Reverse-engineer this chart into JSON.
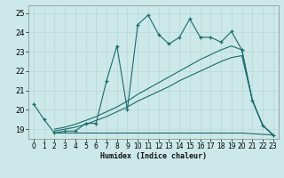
{
  "bg_color": "#cce8e8",
  "grid_color": "#b8d8d8",
  "line_color": "#1a6b6b",
  "xlabel": "Humidex (Indice chaleur)",
  "ylim": [
    18.5,
    25.4
  ],
  "xlim": [
    -0.5,
    23.5
  ],
  "yticks": [
    19,
    20,
    21,
    22,
    23,
    24,
    25
  ],
  "xticks": [
    0,
    1,
    2,
    3,
    4,
    5,
    6,
    7,
    8,
    9,
    10,
    11,
    12,
    13,
    14,
    15,
    16,
    17,
    18,
    19,
    20,
    21,
    22,
    23
  ],
  "series1_x": [
    0,
    1,
    2,
    3,
    4,
    5,
    6,
    7,
    8,
    9,
    10,
    11,
    12,
    13,
    14,
    15,
    16,
    17,
    18,
    19,
    20,
    21,
    22,
    23
  ],
  "series1_y": [
    20.3,
    19.5,
    18.8,
    18.9,
    18.9,
    19.3,
    19.3,
    21.5,
    23.3,
    20.0,
    24.4,
    24.9,
    23.9,
    23.4,
    23.75,
    24.7,
    23.75,
    23.75,
    23.5,
    24.05,
    23.1,
    20.5,
    19.2,
    18.7
  ],
  "series2_x": [
    2,
    3,
    4,
    5,
    6,
    7,
    8,
    9,
    10,
    11,
    12,
    13,
    14,
    15,
    16,
    17,
    18,
    19,
    20,
    23
  ],
  "series2_y": [
    18.8,
    18.8,
    18.8,
    18.8,
    18.8,
    18.8,
    18.8,
    18.8,
    18.8,
    18.8,
    18.8,
    18.8,
    18.8,
    18.8,
    18.8,
    18.8,
    18.8,
    18.8,
    18.8,
    18.7
  ],
  "series3_x": [
    2,
    3,
    4,
    5,
    6,
    7,
    8,
    9,
    10,
    11,
    12,
    13,
    14,
    15,
    16,
    17,
    18,
    19,
    20,
    21,
    22,
    23
  ],
  "series3_y": [
    18.9,
    19.0,
    19.1,
    19.25,
    19.45,
    19.65,
    19.9,
    20.15,
    20.45,
    20.7,
    20.95,
    21.2,
    21.5,
    21.75,
    22.0,
    22.25,
    22.5,
    22.7,
    22.8,
    20.5,
    19.2,
    18.7
  ],
  "series4_x": [
    2,
    3,
    4,
    5,
    6,
    7,
    8,
    9,
    10,
    11,
    12,
    13,
    14,
    15,
    16,
    17,
    18,
    19,
    20,
    21,
    22,
    23
  ],
  "series4_y": [
    19.0,
    19.1,
    19.25,
    19.45,
    19.65,
    19.9,
    20.15,
    20.45,
    20.8,
    21.1,
    21.4,
    21.7,
    22.0,
    22.3,
    22.6,
    22.85,
    23.1,
    23.3,
    23.1,
    20.5,
    19.2,
    18.7
  ]
}
